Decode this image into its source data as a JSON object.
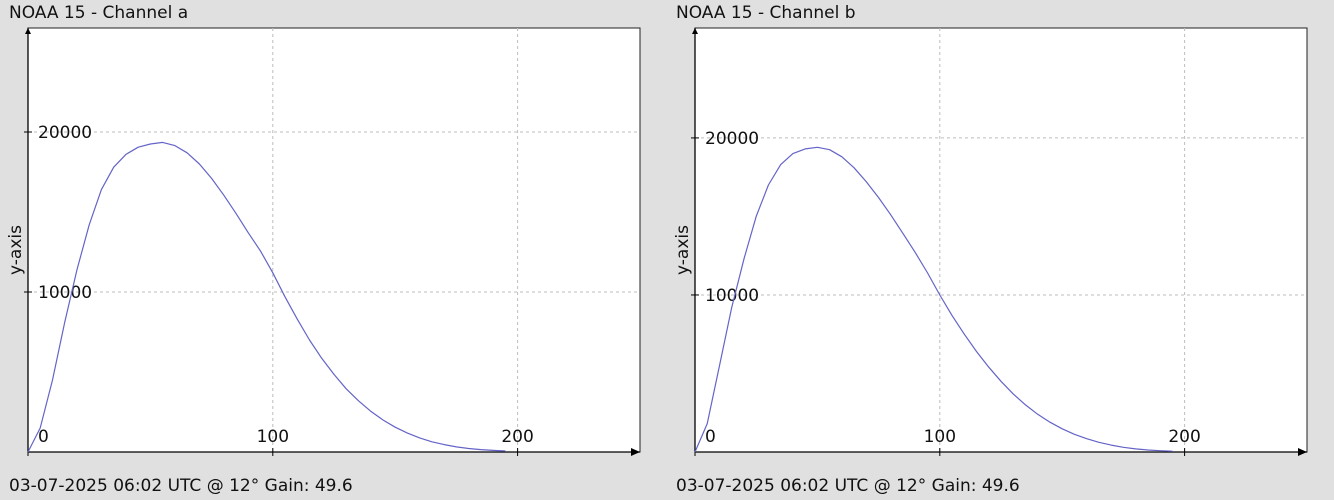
{
  "chart_data": [
    {
      "type": "line",
      "title": "NOAA 15 - Channel a",
      "footer": "03-07-2025 06:02 UTC @ 12° Gain: 49.6",
      "xlabel": "",
      "ylabel": "y-axis",
      "xlim": [
        0,
        250
      ],
      "ylim": [
        0,
        26500
      ],
      "xticks": [
        0,
        100,
        200
      ],
      "yticks": [
        10000,
        20000
      ],
      "grid": true,
      "line_color": "#6464c8",
      "series": [
        {
          "x": [
            0,
            5,
            10,
            15,
            20,
            25,
            30,
            35,
            40,
            45,
            50,
            55,
            60,
            65,
            70,
            75,
            80,
            85,
            90,
            95,
            100,
            105,
            110,
            115,
            120,
            125,
            130,
            135,
            140,
            145,
            150,
            155,
            160,
            165,
            170,
            175,
            180,
            185,
            190,
            195
          ],
          "values": [
            0,
            1500,
            4500,
            8100,
            11400,
            14200,
            16400,
            17800,
            18600,
            19050,
            19250,
            19350,
            19150,
            18700,
            18000,
            17100,
            16050,
            14900,
            13700,
            12550,
            11200,
            9700,
            8300,
            7000,
            5850,
            4850,
            3950,
            3200,
            2550,
            2000,
            1550,
            1180,
            880,
            640,
            460,
            320,
            220,
            150,
            100,
            60
          ]
        }
      ]
    },
    {
      "type": "line",
      "title": "NOAA 15 - Channel b",
      "footer": "03-07-2025 06:02 UTC @ 12° Gain: 49.6",
      "xlabel": "",
      "ylabel": "y-axis",
      "xlim": [
        0,
        250
      ],
      "ylim": [
        0,
        27000
      ],
      "xticks": [
        0,
        100,
        200
      ],
      "yticks": [
        10000,
        20000
      ],
      "grid": true,
      "line_color": "#6464c8",
      "series": [
        {
          "x": [
            0,
            5,
            10,
            15,
            20,
            25,
            30,
            35,
            40,
            45,
            50,
            55,
            60,
            65,
            70,
            75,
            80,
            85,
            90,
            95,
            100,
            105,
            110,
            115,
            120,
            125,
            130,
            135,
            140,
            145,
            150,
            155,
            160,
            165,
            170,
            175,
            180,
            185,
            190,
            195
          ],
          "values": [
            0,
            1800,
            5500,
            9200,
            12300,
            15000,
            17000,
            18300,
            19000,
            19300,
            19400,
            19250,
            18800,
            18100,
            17200,
            16200,
            15100,
            13900,
            12700,
            11400,
            10000,
            8700,
            7500,
            6400,
            5400,
            4500,
            3700,
            3000,
            2400,
            1900,
            1480,
            1130,
            850,
            620,
            440,
            300,
            200,
            130,
            80,
            50
          ]
        }
      ]
    }
  ]
}
